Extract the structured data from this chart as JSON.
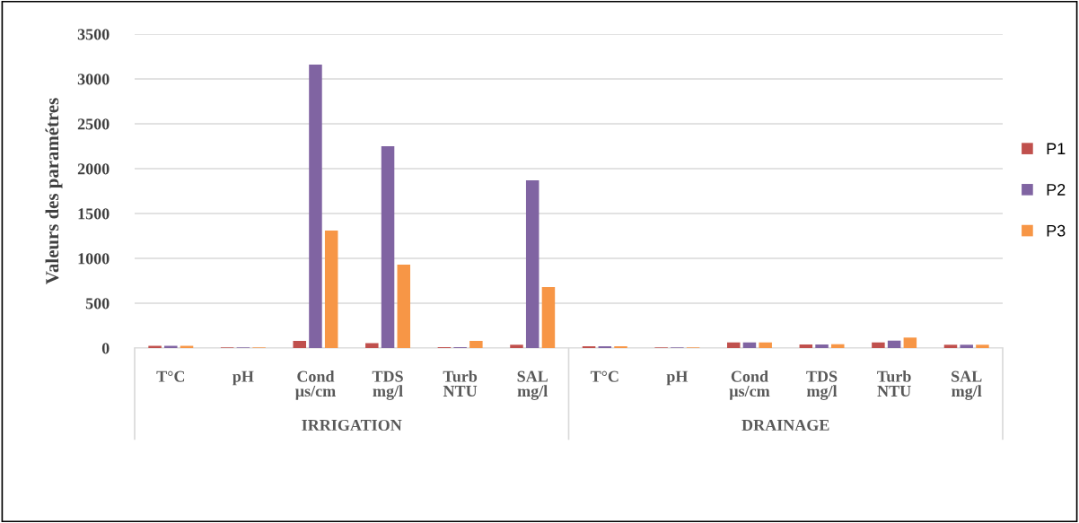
{
  "chart_data": {
    "type": "bar",
    "ylabel": "Valeurs des paramétres",
    "categories": [
      "T°C",
      "pH",
      "Cond\nµs/cm",
      "TDS\nmg/l",
      "Turb\nNTU",
      "SAL\nmg/l",
      "T°C",
      "pH",
      "Cond\nµs/cm",
      "TDS\nmg/l",
      "Turb\nNTU",
      "SAL\nmg/l"
    ],
    "series": [
      {
        "name": "P1",
        "color": "#c0504d",
        "values": [
          25,
          7,
          80,
          55,
          10,
          37,
          20,
          7,
          63,
          40,
          63,
          37
        ]
      },
      {
        "name": "P2",
        "color": "#8064a2",
        "values": [
          25,
          7,
          3160,
          2250,
          10,
          1870,
          20,
          7,
          63,
          40,
          83,
          37
        ]
      },
      {
        "name": "P3",
        "color": "#f79646",
        "values": [
          25,
          7,
          1310,
          930,
          80,
          680,
          20,
          7,
          63,
          43,
          117,
          37
        ]
      }
    ],
    "annotations": [
      "IRRIGATION",
      "DRAINAGE"
    ],
    "ylim": [
      0,
      3500
    ],
    "yticks": [
      0,
      500,
      1000,
      1500,
      2000,
      2500,
      3000,
      3500
    ],
    "grid": "y",
    "legend": "right"
  }
}
